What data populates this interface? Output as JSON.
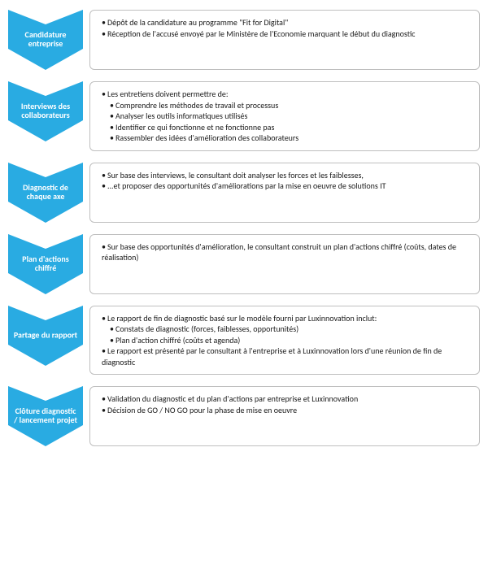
{
  "type": "flowchart",
  "background_color": "#ffffff",
  "arrow_color": "#29abe2",
  "box_border_color": "#bfbfbf",
  "text_color": "#1a1a1a",
  "label_text_color": "#ffffff",
  "font_family": "Calibri, Arial, sans-serif",
  "label_fontsize": 10,
  "content_fontsize": 10,
  "steps": [
    {
      "label_lines": [
        "Candidature",
        "entreprise"
      ],
      "bullets": [
        {
          "level": 1,
          "text": "Dépôt de la candidature au programme \"Fit for Digital\""
        },
        {
          "level": 1,
          "text": "Réception de l'accusé envoyé par le Ministère de l'Economie marquant le début du diagnostic"
        }
      ]
    },
    {
      "label_lines": [
        "Interviews des",
        "collaborateurs"
      ],
      "bullets": [
        {
          "level": 1,
          "text": "Les entretiens doivent permettre de:"
        },
        {
          "level": 2,
          "text": "Comprendre les méthodes de travail et processus"
        },
        {
          "level": 2,
          "text": "Analyser les outils informatiques utilisés"
        },
        {
          "level": 2,
          "text": "Identifier ce qui fonctionne et ne fonctionne pas"
        },
        {
          "level": 2,
          "text": "Rassembler des idées d'amélioration des collaborateurs"
        }
      ]
    },
    {
      "label_lines": [
        "Diagnostic de",
        "chaque axe"
      ],
      "bullets": [
        {
          "level": 1,
          "text": "Sur base des interviews, le consultant doit analyser les forces et les faiblesses,"
        },
        {
          "level": 1,
          "text": "...et proposer des opportunités d'améliorations par la mise en oeuvre de solutions IT"
        }
      ]
    },
    {
      "label_lines": [
        "Plan d'actions",
        "chiffré"
      ],
      "bullets": [
        {
          "level": 1,
          "text": "Sur base des opportunités d'amélioration, le consultant construit un plan d'actions chiffré (coûts, dates de réalisation)"
        }
      ]
    },
    {
      "label_lines": [
        "Partage du rapport"
      ],
      "bullets": [
        {
          "level": 1,
          "text": "Le rapport de fin de diagnostic basé sur le modèle fourni par Luxinnovation inclut:"
        },
        {
          "level": 2,
          "text": "Constats de diagnostic (forces, faiblesses, opportunités)"
        },
        {
          "level": 2,
          "text": "Plan d'action chiffré (coûts et agenda)"
        },
        {
          "level": 1,
          "text": "Le rapport est présenté par le consultant à l'entreprise et à Luxinnovation lors d'une réunion de fin de diagnostic"
        }
      ]
    },
    {
      "label_lines": [
        "Clôture diagnostic",
        "/ lancement projet"
      ],
      "bullets": [
        {
          "level": 1,
          "text": "Validation du diagnostic et du plan d'actions par entreprise et Luxinnovation"
        },
        {
          "level": 1,
          "text": "Décision de GO / NO GO pour la phase de mise en oeuvre"
        }
      ]
    }
  ]
}
